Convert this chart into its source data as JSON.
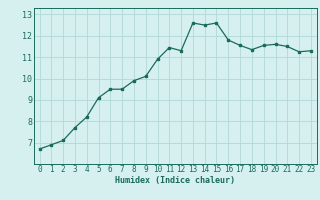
{
  "x": [
    0,
    1,
    2,
    3,
    4,
    5,
    6,
    7,
    8,
    9,
    10,
    11,
    12,
    13,
    14,
    15,
    16,
    17,
    18,
    19,
    20,
    21,
    22,
    23
  ],
  "y": [
    6.7,
    6.9,
    7.1,
    7.7,
    8.2,
    9.1,
    9.5,
    9.5,
    9.9,
    10.1,
    10.9,
    11.45,
    11.3,
    12.6,
    12.5,
    12.6,
    11.8,
    11.55,
    11.35,
    11.55,
    11.6,
    11.5,
    11.25,
    11.3
  ],
  "xlim": [
    -0.5,
    23.5
  ],
  "ylim": [
    6.0,
    13.3
  ],
  "yticks": [
    7,
    8,
    9,
    10,
    11,
    12,
    13
  ],
  "xticks": [
    0,
    1,
    2,
    3,
    4,
    5,
    6,
    7,
    8,
    9,
    10,
    11,
    12,
    13,
    14,
    15,
    16,
    17,
    18,
    19,
    20,
    21,
    22,
    23
  ],
  "xlabel": "Humidex (Indice chaleur)",
  "line_color": "#1a6b5a",
  "marker": "s",
  "marker_size": 2.0,
  "bg_color": "#d6f0f0",
  "grid_color": "#b0d8d8",
  "tick_color": "#1a6b5a",
  "label_color": "#1a6b5a",
  "line_width": 0.9,
  "tick_fontsize": 5.5,
  "xlabel_fontsize": 6.0
}
